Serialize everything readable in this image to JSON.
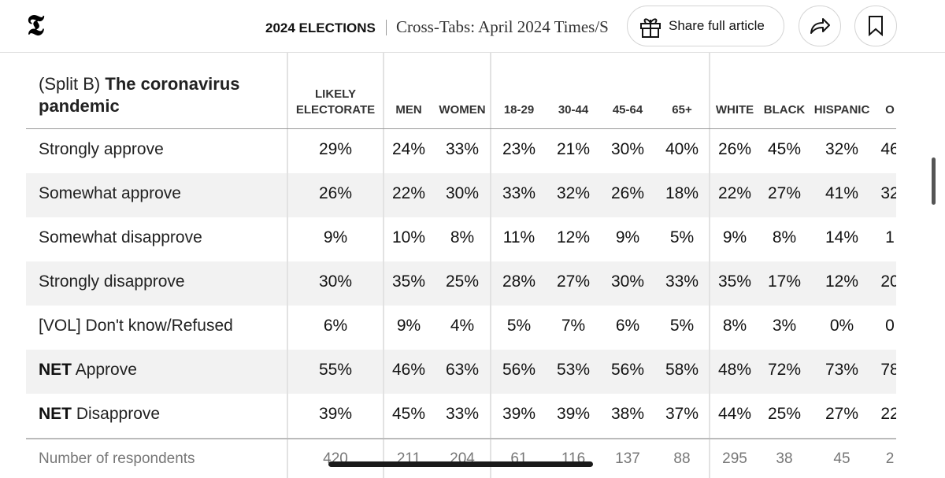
{
  "header": {
    "section": "2024 ELECTIONS",
    "headline": "Cross-Tabs: April 2024 Times/S",
    "share": "Share full article"
  },
  "table": {
    "title_prefix": "(Split B)",
    "title_bold": "The coronavirus pandemic",
    "columns": [
      "LIKELY ELECTORATE",
      "MEN",
      "WOMEN",
      "18-29",
      "30-44",
      "45-64",
      "65+",
      "WHITE",
      "BLACK",
      "HISPANIC",
      "O"
    ],
    "rows": [
      {
        "label": "Strongly approve",
        "values": [
          "29%",
          "24%",
          "33%",
          "23%",
          "21%",
          "30%",
          "40%",
          "26%",
          "45%",
          "32%",
          "46"
        ]
      },
      {
        "label": "Somewhat approve",
        "values": [
          "26%",
          "22%",
          "30%",
          "33%",
          "32%",
          "26%",
          "18%",
          "22%",
          "27%",
          "41%",
          "32"
        ]
      },
      {
        "label": "Somewhat disapprove",
        "values": [
          "9%",
          "10%",
          "8%",
          "11%",
          "12%",
          "9%",
          "5%",
          "9%",
          "8%",
          "14%",
          "1"
        ]
      },
      {
        "label": "Strongly disapprove",
        "values": [
          "30%",
          "35%",
          "25%",
          "28%",
          "27%",
          "30%",
          "33%",
          "35%",
          "17%",
          "12%",
          "20"
        ]
      },
      {
        "label": "[VOL] Don't know/Refused",
        "values": [
          "6%",
          "9%",
          "4%",
          "5%",
          "7%",
          "6%",
          "5%",
          "8%",
          "3%",
          "0%",
          "0"
        ]
      },
      {
        "label_bold": "NET",
        "label": "Approve",
        "values": [
          "55%",
          "46%",
          "63%",
          "56%",
          "53%",
          "56%",
          "58%",
          "48%",
          "72%",
          "73%",
          "78"
        ]
      },
      {
        "label_bold": "NET",
        "label": "Disapprove",
        "values": [
          "39%",
          "45%",
          "33%",
          "39%",
          "39%",
          "38%",
          "37%",
          "44%",
          "25%",
          "27%",
          "22"
        ]
      }
    ],
    "footer": {
      "label": "Number of respondents",
      "values": [
        "420",
        "211",
        "204",
        "61",
        "116",
        "137",
        "88",
        "295",
        "38",
        "45",
        "2"
      ]
    }
  }
}
